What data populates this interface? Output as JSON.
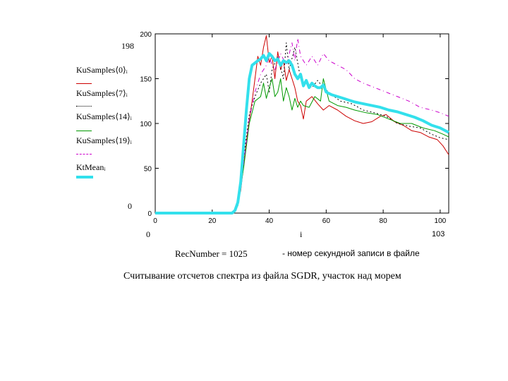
{
  "chart_data": {
    "type": "line",
    "xlim": [
      0,
      103
    ],
    "ylim": [
      0,
      200
    ],
    "x_ticks": [
      0,
      20,
      40,
      60,
      80,
      100
    ],
    "y_ticks": [
      0,
      50,
      100,
      150,
      200
    ],
    "x_range_labels": {
      "min": "0",
      "var": "i",
      "max": "103"
    },
    "y_range_labels": {
      "min": "0",
      "max": "198"
    },
    "series": [
      {
        "name": "KuSamples⟨0⟩ᵢ",
        "color": "#cc0000",
        "dash": "solid",
        "width": 1,
        "points": [
          [
            0,
            0
          ],
          [
            26,
            0
          ],
          [
            28,
            3
          ],
          [
            30,
            25
          ],
          [
            32,
            80
          ],
          [
            34,
            125
          ],
          [
            35,
            150
          ],
          [
            36,
            175
          ],
          [
            37,
            165
          ],
          [
            38,
            185
          ],
          [
            39,
            198
          ],
          [
            40,
            168
          ],
          [
            41,
            175
          ],
          [
            42,
            150
          ],
          [
            43,
            180
          ],
          [
            44,
            160
          ],
          [
            45,
            170
          ],
          [
            46,
            148
          ],
          [
            47,
            160
          ],
          [
            48,
            150
          ],
          [
            49,
            140
          ],
          [
            50,
            125
          ],
          [
            51,
            120
          ],
          [
            52,
            105
          ],
          [
            53,
            125
          ],
          [
            55,
            130
          ],
          [
            57,
            122
          ],
          [
            59,
            115
          ],
          [
            61,
            120
          ],
          [
            64,
            115
          ],
          [
            67,
            108
          ],
          [
            70,
            103
          ],
          [
            73,
            100
          ],
          [
            76,
            102
          ],
          [
            79,
            108
          ],
          [
            81,
            110
          ],
          [
            84,
            102
          ],
          [
            87,
            98
          ],
          [
            90,
            92
          ],
          [
            93,
            90
          ],
          [
            96,
            85
          ],
          [
            99,
            82
          ],
          [
            101,
            75
          ],
          [
            103,
            65
          ]
        ]
      },
      {
        "name": "KuSamples⟨7⟩ᵢ",
        "color": "#000000",
        "dash": "2,3",
        "width": 1,
        "points": [
          [
            0,
            0
          ],
          [
            27,
            0
          ],
          [
            29,
            10
          ],
          [
            31,
            60
          ],
          [
            33,
            110
          ],
          [
            35,
            130
          ],
          [
            37,
            145
          ],
          [
            39,
            155
          ],
          [
            40,
            135
          ],
          [
            41,
            160
          ],
          [
            43,
            175
          ],
          [
            45,
            150
          ],
          [
            46,
            190
          ],
          [
            47,
            160
          ],
          [
            49,
            185
          ],
          [
            51,
            150
          ],
          [
            53,
            145
          ],
          [
            55,
            140
          ],
          [
            57,
            148
          ],
          [
            59,
            140
          ],
          [
            62,
            132
          ],
          [
            65,
            125
          ],
          [
            69,
            122
          ],
          [
            73,
            115
          ],
          [
            77,
            112
          ],
          [
            81,
            108
          ],
          [
            85,
            100
          ],
          [
            89,
            97
          ],
          [
            93,
            95
          ],
          [
            97,
            88
          ],
          [
            100,
            84
          ],
          [
            103,
            82
          ]
        ]
      },
      {
        "name": "KuSamples⟨14⟩ᵢ",
        "color": "#009900",
        "dash": "solid",
        "width": 1,
        "points": [
          [
            0,
            0
          ],
          [
            27,
            0
          ],
          [
            29,
            8
          ],
          [
            31,
            50
          ],
          [
            33,
            100
          ],
          [
            35,
            125
          ],
          [
            37,
            130
          ],
          [
            38,
            145
          ],
          [
            39,
            128
          ],
          [
            40,
            140
          ],
          [
            41,
            150
          ],
          [
            42,
            130
          ],
          [
            43,
            135
          ],
          [
            44,
            150
          ],
          [
            45,
            125
          ],
          [
            46,
            140
          ],
          [
            47,
            130
          ],
          [
            48,
            115
          ],
          [
            49,
            128
          ],
          [
            50,
            118
          ],
          [
            51,
            125
          ],
          [
            52,
            120
          ],
          [
            54,
            118
          ],
          [
            56,
            130
          ],
          [
            58,
            125
          ],
          [
            59,
            150
          ],
          [
            61,
            125
          ],
          [
            64,
            120
          ],
          [
            67,
            118
          ],
          [
            70,
            115
          ],
          [
            74,
            112
          ],
          [
            78,
            110
          ],
          [
            82,
            105
          ],
          [
            86,
            100
          ],
          [
            90,
            100
          ],
          [
            94,
            95
          ],
          [
            98,
            92
          ],
          [
            101,
            88
          ],
          [
            103,
            85
          ]
        ]
      },
      {
        "name": "KuSamples⟨19⟩ᵢ",
        "color": "#cc00cc",
        "dash": "6,4,1,4",
        "width": 1,
        "points": [
          [
            0,
            0
          ],
          [
            27,
            0
          ],
          [
            29,
            10
          ],
          [
            31,
            55
          ],
          [
            33,
            105
          ],
          [
            35,
            135
          ],
          [
            37,
            155
          ],
          [
            39,
            165
          ],
          [
            40,
            175
          ],
          [
            41,
            165
          ],
          [
            42,
            160
          ],
          [
            44,
            178
          ],
          [
            46,
            165
          ],
          [
            48,
            190
          ],
          [
            49,
            170
          ],
          [
            50,
            195
          ],
          [
            51,
            175
          ],
          [
            53,
            165
          ],
          [
            55,
            175
          ],
          [
            57,
            165
          ],
          [
            59,
            178
          ],
          [
            61,
            170
          ],
          [
            64,
            165
          ],
          [
            67,
            160
          ],
          [
            70,
            150
          ],
          [
            73,
            145
          ],
          [
            77,
            140
          ],
          [
            81,
            135
          ],
          [
            85,
            130
          ],
          [
            89,
            125
          ],
          [
            93,
            118
          ],
          [
            97,
            115
          ],
          [
            100,
            112
          ],
          [
            103,
            108
          ]
        ]
      },
      {
        "name": "KtMeanᵢ",
        "color": "#33e0ec",
        "dash": "solid",
        "width": 4,
        "points": [
          [
            0,
            0
          ],
          [
            27,
            0
          ],
          [
            28,
            3
          ],
          [
            29,
            12
          ],
          [
            30,
            35
          ],
          [
            31,
            75
          ],
          [
            32,
            115
          ],
          [
            33,
            150
          ],
          [
            34,
            165
          ],
          [
            36,
            170
          ],
          [
            37,
            172
          ],
          [
            38,
            176
          ],
          [
            39,
            170
          ],
          [
            40,
            178
          ],
          [
            41,
            175
          ],
          [
            42,
            170
          ],
          [
            43,
            172
          ],
          [
            44,
            165
          ],
          [
            45,
            170
          ],
          [
            46,
            168
          ],
          [
            47,
            170
          ],
          [
            48,
            165
          ],
          [
            49,
            155
          ],
          [
            50,
            150
          ],
          [
            51,
            155
          ],
          [
            52,
            142
          ],
          [
            53,
            148
          ],
          [
            54,
            140
          ],
          [
            55,
            145
          ],
          [
            56,
            142
          ],
          [
            57,
            140
          ],
          [
            58,
            140
          ],
          [
            59,
            143
          ],
          [
            60,
            135
          ],
          [
            62,
            132
          ],
          [
            64,
            130
          ],
          [
            66,
            128
          ],
          [
            68,
            126
          ],
          [
            70,
            124
          ],
          [
            73,
            122
          ],
          [
            76,
            120
          ],
          [
            79,
            118
          ],
          [
            82,
            115
          ],
          [
            85,
            113
          ],
          [
            88,
            110
          ],
          [
            91,
            107
          ],
          [
            94,
            103
          ],
          [
            97,
            98
          ],
          [
            100,
            95
          ],
          [
            103,
            90
          ]
        ]
      }
    ],
    "legend_position": "left"
  },
  "annotations": {
    "recnumber": "RecNumber = 1025",
    "recnumber_note": "- номер секундной записи в файле",
    "caption": "Считывание отсчетов спектра из файла SGDR, участок над морем"
  }
}
